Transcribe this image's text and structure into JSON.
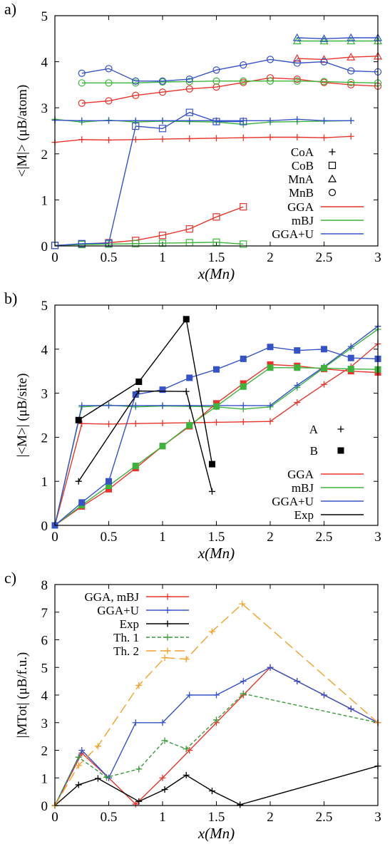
{
  "colors": {
    "GGA": "#e8342c",
    "mBJ": "#3cb43c",
    "GGA+U": "#3552c8",
    "Exp": "#000000",
    "Th1": "#3a9a3a",
    "Th2": "#f5a02a"
  },
  "chart_data": [
    {
      "type": "line",
      "panel_label": "a)",
      "ylabel": "<|M|> (μB/atom)",
      "xlabel": "x(Mn)",
      "xlim": [
        0,
        3
      ],
      "ylim": [
        0,
        5
      ],
      "xticks": [
        "0",
        "0.5",
        "1",
        "1.5",
        "2",
        "2.5",
        "3"
      ],
      "yticks": [
        "0",
        "1",
        "2",
        "3",
        "4",
        "5"
      ],
      "legend_position": "lower-right",
      "legend_markers": [
        {
          "label": "CoA",
          "marker": "plus"
        },
        {
          "label": "CoB",
          "marker": "square"
        },
        {
          "label": "MnA",
          "marker": "triangle"
        },
        {
          "label": "MnB",
          "marker": "circle"
        }
      ],
      "legend_lines": [
        "GGA",
        "mBJ",
        "GGA+U"
      ],
      "series": [
        {
          "method": "GGA",
          "site": "CoA",
          "marker": "plus",
          "x": [
            0,
            0.25,
            0.5,
            0.75,
            1,
            1.25,
            1.5,
            1.75,
            2,
            2.25,
            2.5,
            2.75
          ],
          "y": [
            2.25,
            2.31,
            2.3,
            2.31,
            2.32,
            2.33,
            2.34,
            2.35,
            2.36,
            2.36,
            2.35,
            2.38
          ]
        },
        {
          "method": "mBJ",
          "site": "CoA",
          "marker": "plus",
          "x": [
            0,
            0.25,
            0.5,
            0.75,
            1,
            1.25,
            1.5,
            1.75,
            2,
            2.25,
            2.5,
            2.75
          ],
          "y": [
            2.75,
            2.69,
            2.73,
            2.69,
            2.71,
            2.7,
            2.69,
            2.64,
            2.69,
            2.7,
            2.71,
            2.72
          ]
        },
        {
          "method": "GGA+U",
          "site": "CoA",
          "marker": "plus",
          "x": [
            0,
            0.25,
            0.5,
            0.75,
            1,
            1.25,
            1.5,
            1.75,
            2,
            2.25,
            2.5,
            2.75
          ],
          "y": [
            2.73,
            2.72,
            2.72,
            2.72,
            2.72,
            2.72,
            2.72,
            2.72,
            2.72,
            2.75,
            2.72,
            2.72
          ]
        },
        {
          "method": "GGA",
          "site": "CoB",
          "marker": "square",
          "x": [
            0,
            0.25,
            0.5,
            0.75,
            1,
            1.25,
            1.5,
            1.75
          ],
          "y": [
            0.01,
            0.04,
            0.07,
            0.12,
            0.23,
            0.37,
            0.63,
            0.85
          ]
        },
        {
          "method": "mBJ",
          "site": "CoB",
          "marker": "square",
          "x": [
            0,
            0.25,
            0.5,
            0.75,
            1,
            1.25,
            1.5,
            1.75
          ],
          "y": [
            0.01,
            0.03,
            0.04,
            0.05,
            0.06,
            0.07,
            0.08,
            0.04
          ]
        },
        {
          "method": "GGA+U",
          "site": "CoB",
          "marker": "square",
          "x": [
            0,
            0.25,
            0.5,
            0.75,
            1,
            1.25,
            1.5,
            1.75
          ],
          "y": [
            0.01,
            0.05,
            0.06,
            2.6,
            2.55,
            2.9,
            2.7,
            2.7
          ]
        },
        {
          "method": "GGA",
          "site": "MnA",
          "marker": "triangle",
          "x": [
            2.25,
            2.5,
            2.75,
            3
          ],
          "y": [
            4.07,
            4.05,
            4.1,
            4.12
          ]
        },
        {
          "method": "mBJ",
          "site": "MnA",
          "marker": "triangle",
          "x": [
            2.25,
            2.5,
            2.75,
            3
          ],
          "y": [
            4.45,
            4.45,
            4.45,
            4.45
          ]
        },
        {
          "method": "GGA+U",
          "site": "MnA",
          "marker": "triangle",
          "x": [
            2.25,
            2.5,
            2.75,
            3
          ],
          "y": [
            4.52,
            4.5,
            4.52,
            4.52
          ]
        },
        {
          "method": "GGA",
          "site": "MnB",
          "marker": "circle",
          "x": [
            0.25,
            0.5,
            0.75,
            1,
            1.25,
            1.5,
            1.75,
            2,
            2.25,
            2.5,
            2.75,
            3
          ],
          "y": [
            3.1,
            3.15,
            3.27,
            3.34,
            3.41,
            3.45,
            3.55,
            3.65,
            3.62,
            3.55,
            3.5,
            3.47
          ]
        },
        {
          "method": "mBJ",
          "site": "MnB",
          "marker": "circle",
          "x": [
            0.25,
            0.5,
            0.75,
            1,
            1.25,
            1.5,
            1.75,
            2,
            2.25,
            2.5,
            2.75,
            3
          ],
          "y": [
            3.54,
            3.54,
            3.54,
            3.56,
            3.57,
            3.58,
            3.58,
            3.58,
            3.58,
            3.57,
            3.55,
            3.54
          ]
        },
        {
          "method": "GGA+U",
          "site": "MnB",
          "marker": "circle",
          "x": [
            0.25,
            0.5,
            0.75,
            1,
            1.25,
            1.5,
            1.75,
            2,
            2.25,
            2.5,
            2.75,
            3
          ],
          "y": [
            3.75,
            3.85,
            3.58,
            3.58,
            3.62,
            3.82,
            3.93,
            4.05,
            3.97,
            4.0,
            3.8,
            3.78
          ]
        }
      ]
    },
    {
      "type": "line",
      "panel_label": "b)",
      "ylabel": "|<M>| (μB/site)",
      "xlabel": "x(Mn)",
      "xlim": [
        0,
        3
      ],
      "ylim": [
        0,
        5
      ],
      "xticks": [
        "0",
        "0.5",
        "1",
        "1.5",
        "2",
        "2.5",
        "3"
      ],
      "yticks": [
        "0",
        "1",
        "2",
        "3",
        "4",
        "5"
      ],
      "legend_position": "right",
      "legend_markers": [
        {
          "label": "A",
          "marker": "plus"
        },
        {
          "label": "B",
          "marker": "filled-square"
        }
      ],
      "legend_lines": [
        "GGA",
        "mBJ",
        "GGA+U",
        "Exp"
      ],
      "series": [
        {
          "method": "GGA",
          "site": "A",
          "marker": "plus",
          "x": [
            0,
            0.25,
            0.5,
            0.75,
            1,
            1.25,
            1.5,
            1.75,
            2,
            2.25,
            2.5,
            2.75,
            3
          ],
          "y": [
            0,
            2.31,
            2.3,
            2.31,
            2.32,
            2.33,
            2.34,
            2.35,
            2.36,
            2.79,
            3.2,
            3.6,
            4.12
          ]
        },
        {
          "method": "mBJ",
          "site": "A",
          "marker": "plus",
          "x": [
            0,
            0.25,
            0.5,
            0.75,
            1,
            1.25,
            1.5,
            1.75,
            2,
            2.25,
            2.5,
            2.75,
            3
          ],
          "y": [
            0,
            2.69,
            2.73,
            2.69,
            2.71,
            2.7,
            2.69,
            2.64,
            2.69,
            3.13,
            3.58,
            4.02,
            4.45
          ]
        },
        {
          "method": "GGA+U",
          "site": "A",
          "marker": "plus",
          "x": [
            0,
            0.25,
            0.5,
            0.75,
            1,
            1.25,
            1.5,
            1.75,
            2,
            2.25,
            2.5,
            2.75,
            3
          ],
          "y": [
            0,
            2.72,
            2.72,
            2.72,
            2.72,
            2.72,
            2.72,
            2.72,
            2.72,
            3.18,
            3.6,
            4.06,
            4.52
          ]
        },
        {
          "method": "GGA",
          "site": "B",
          "marker": "filled-square",
          "x": [
            0,
            0.25,
            0.5,
            0.75,
            1,
            1.25,
            1.5,
            1.75,
            2,
            2.25,
            2.5,
            2.75,
            3
          ],
          "y": [
            0,
            0.43,
            0.82,
            1.3,
            1.8,
            2.25,
            2.77,
            3.22,
            3.65,
            3.62,
            3.55,
            3.5,
            3.47
          ]
        },
        {
          "method": "mBJ",
          "site": "B",
          "marker": "filled-square",
          "x": [
            0,
            0.25,
            0.5,
            0.75,
            1,
            1.25,
            1.5,
            1.75,
            2,
            2.25,
            2.5,
            2.75,
            3
          ],
          "y": [
            0,
            0.46,
            0.9,
            1.35,
            1.8,
            2.27,
            2.7,
            3.15,
            3.58,
            3.58,
            3.57,
            3.55,
            3.54
          ]
        },
        {
          "method": "GGA+U",
          "site": "B",
          "marker": "filled-square",
          "x": [
            0,
            0.25,
            0.5,
            0.75,
            1,
            1.25,
            1.5,
            1.75,
            2,
            2.25,
            2.5,
            2.75,
            3
          ],
          "y": [
            0,
            0.52,
            1.0,
            2.97,
            3.08,
            3.35,
            3.54,
            3.78,
            4.05,
            3.97,
            4.0,
            3.8,
            3.78
          ]
        },
        {
          "method": "Exp",
          "site": "A",
          "marker": "plus",
          "x": [
            0.22,
            0.78,
            1.22,
            1.46
          ],
          "y": [
            1.0,
            3.05,
            3.04,
            0.77
          ]
        },
        {
          "method": "Exp",
          "site": "B",
          "marker": "filled-square",
          "x": [
            0.22,
            0.78,
            1.22,
            1.46
          ],
          "y": [
            2.39,
            3.26,
            4.68,
            1.39
          ]
        }
      ]
    },
    {
      "type": "line",
      "panel_label": "c)",
      "ylabel": "|MTot| (μB/f.u.)",
      "xlabel": "x(Mn)",
      "xlim": [
        0,
        3
      ],
      "ylim": [
        0,
        8
      ],
      "xticks": [
        "0",
        "0.5",
        "1",
        "1.5",
        "2",
        "2.5",
        "3"
      ],
      "yticks": [
        "0",
        "1",
        "2",
        "3",
        "4",
        "5",
        "6",
        "7",
        "8"
      ],
      "legend_position": "top-left",
      "series": [
        {
          "name": "GGA, mBJ",
          "key": "GGA",
          "style": "solid",
          "x": [
            0,
            0.25,
            0.5,
            0.75,
            1,
            1.25,
            1.5,
            1.75,
            2,
            2.25,
            2.5,
            2.75,
            3
          ],
          "y": [
            0,
            1.9,
            1.0,
            0.05,
            1.0,
            2.0,
            3.0,
            4.0,
            5.0,
            4.5,
            4.0,
            3.5,
            3.0
          ]
        },
        {
          "name": "GGA+U",
          "key": "GGA+U",
          "style": "solid",
          "x": [
            0,
            0.25,
            0.5,
            0.75,
            1,
            1.25,
            1.5,
            1.75,
            2,
            2.25,
            2.5,
            2.75,
            3
          ],
          "y": [
            0,
            2.0,
            1.0,
            3.0,
            3.0,
            4.0,
            4.0,
            4.5,
            5.0,
            4.5,
            4.0,
            3.5,
            3.0
          ]
        },
        {
          "name": "Exp",
          "key": "Exp",
          "style": "solid",
          "x": [
            0,
            0.22,
            0.4,
            0.78,
            1.02,
            1.22,
            1.46,
            1.72,
            3
          ],
          "y": [
            0,
            0.75,
            0.98,
            0.15,
            0.58,
            1.1,
            0.53,
            0.03,
            1.43
          ]
        },
        {
          "name": "Th. 1",
          "key": "Th1",
          "style": "dashed",
          "x": [
            0,
            0.22,
            0.48,
            0.78,
            1.02,
            1.22,
            1.5,
            1.75,
            3
          ],
          "y": [
            0,
            1.75,
            1.02,
            1.32,
            2.35,
            2.05,
            3.1,
            4.05,
            3.0
          ]
        },
        {
          "name": "Th. 2",
          "key": "Th2",
          "style": "longdash",
          "x": [
            0,
            0.22,
            0.4,
            0.78,
            1.02,
            1.22,
            1.46,
            1.74,
            3
          ],
          "y": [
            0,
            1.45,
            2.15,
            4.35,
            5.35,
            5.3,
            6.3,
            7.3,
            3.0
          ]
        }
      ]
    }
  ]
}
